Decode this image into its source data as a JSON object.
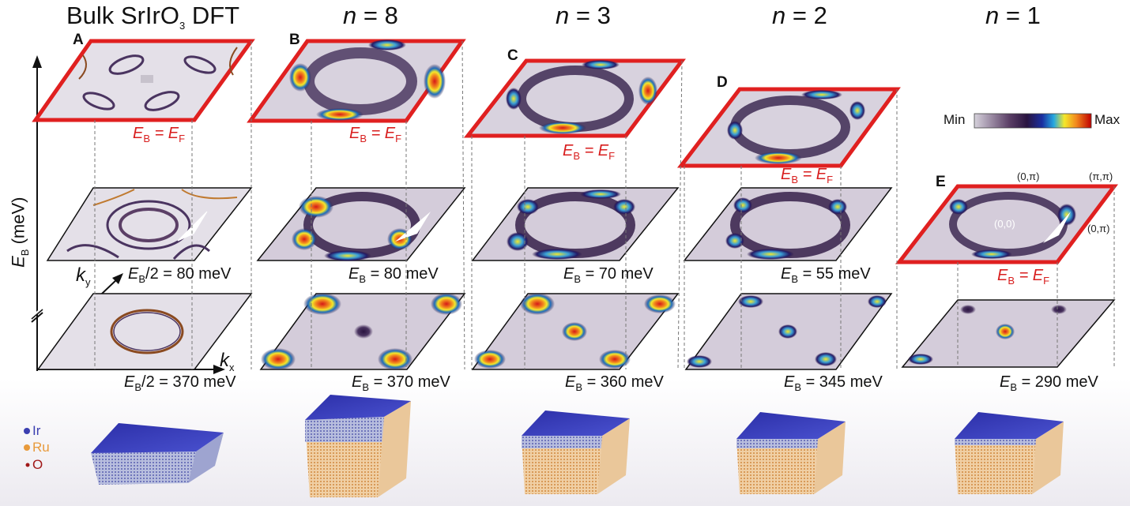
{
  "titles": {
    "bulk": "Bulk SrIrO",
    "bulk_sub": "3",
    "bulk_tail": " DFT",
    "n8": "= 8",
    "n3": "= 3",
    "n2": "= 2",
    "n1": "= 1",
    "n_symbol": "n"
  },
  "panels": {
    "a": "A",
    "b": "B",
    "c": "C",
    "d": "D",
    "e": "E"
  },
  "axes": {
    "y_symbol": "E",
    "y_sub": "B",
    "y_unit": "(meV)",
    "kx_symbol": "k",
    "kx_sub": "x",
    "ky_symbol": "k",
    "ky_sub": "y"
  },
  "energy_labels": {
    "ef_E": "E",
    "ef_B": "B",
    "ef_eq": " = E",
    "ef_F": "F",
    "bulk_mid_pre": "E",
    "bulk_mid_sub": "B",
    "bulk_mid": "/2 = 80 meV",
    "bulk_low": "/2 = 370 meV",
    "n8_mid": " = 80 meV",
    "n8_low": " = 370 meV",
    "n3_mid": " = 70 meV",
    "n3_low": " = 360 meV",
    "n2_mid": " = 55 meV",
    "n2_low": " = 345 meV",
    "n1_low": " = 290 meV"
  },
  "colorbar": {
    "min": "Min",
    "max": "Max",
    "colors": [
      "#d6d2dc",
      "#9b8aa3",
      "#5b3f66",
      "#2a1440",
      "#1b2fa0",
      "#26a8e0",
      "#f4e82a",
      "#f28a1e",
      "#d61818",
      "#8a0000"
    ]
  },
  "high_symmetry": {
    "g": "(0,0)",
    "x_top": "(0,π)",
    "m": "(π,π)",
    "x_right": "(0,π)"
  },
  "legend": {
    "ir": "Ir",
    "ru": "Ru",
    "o": "O"
  },
  "colors": {
    "frame": "#e02020",
    "ir": "#3b3fb0",
    "ru": "#e89a3c",
    "o": "#a01818"
  }
}
